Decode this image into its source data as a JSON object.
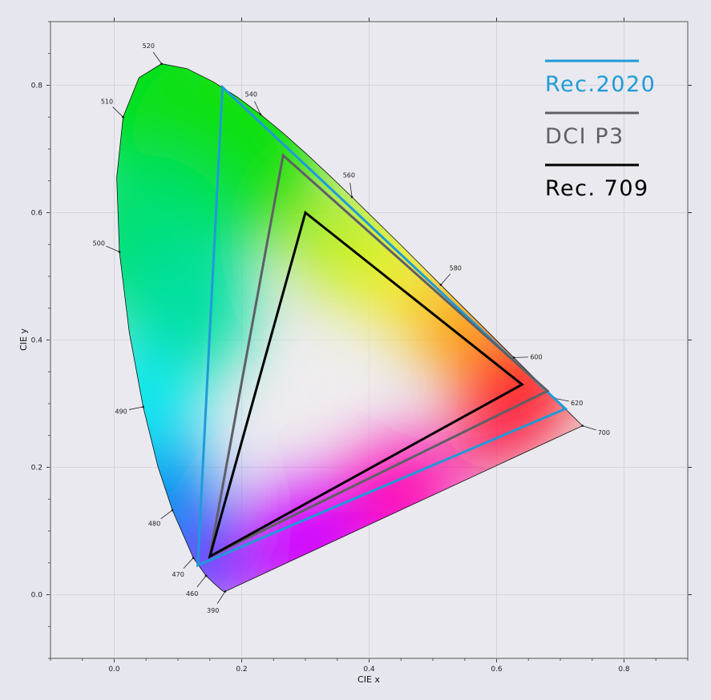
{
  "chart_data": {
    "type": "scatter",
    "title": "",
    "xlabel": "CIE x",
    "ylabel": "CIE y",
    "xlim": [
      -0.1,
      0.9
    ],
    "ylim": [
      -0.1,
      0.9
    ],
    "xticks": [
      0.0,
      0.2,
      0.4,
      0.6,
      0.8
    ],
    "yticks": [
      0.0,
      0.2,
      0.4,
      0.6,
      0.8
    ],
    "xtick_labels": [
      "0.0",
      "0.2",
      "0.4",
      "0.6",
      "0.8"
    ],
    "ytick_labels": [
      "0.0",
      "0.2",
      "0.4",
      "0.6",
      "0.8"
    ],
    "grid": true,
    "legend_position": "top-right",
    "spectral_locus": [
      [
        0.1741,
        0.005
      ],
      [
        0.1738,
        0.0049
      ],
      [
        0.1733,
        0.0048
      ],
      [
        0.1726,
        0.0048
      ],
      [
        0.1714,
        0.0051
      ],
      [
        0.1689,
        0.0069
      ],
      [
        0.1644,
        0.0109
      ],
      [
        0.1566,
        0.0177
      ],
      [
        0.144,
        0.0297
      ],
      [
        0.1241,
        0.0578
      ],
      [
        0.0913,
        0.1327
      ],
      [
        0.0687,
        0.2007
      ],
      [
        0.0454,
        0.295
      ],
      [
        0.0235,
        0.4127
      ],
      [
        0.0082,
        0.5384
      ],
      [
        0.0039,
        0.6548
      ],
      [
        0.0139,
        0.7502
      ],
      [
        0.0389,
        0.812
      ],
      [
        0.0743,
        0.8338
      ],
      [
        0.1142,
        0.8262
      ],
      [
        0.1547,
        0.8059
      ],
      [
        0.1929,
        0.7816
      ],
      [
        0.2296,
        0.7543
      ],
      [
        0.2658,
        0.7243
      ],
      [
        0.3016,
        0.6923
      ],
      [
        0.3373,
        0.6589
      ],
      [
        0.3731,
        0.6245
      ],
      [
        0.4087,
        0.5896
      ],
      [
        0.4441,
        0.5547
      ],
      [
        0.4788,
        0.5202
      ],
      [
        0.5125,
        0.4866
      ],
      [
        0.5448,
        0.4544
      ],
      [
        0.5752,
        0.4242
      ],
      [
        0.6029,
        0.3965
      ],
      [
        0.627,
        0.3725
      ],
      [
        0.6482,
        0.3514
      ],
      [
        0.6658,
        0.334
      ],
      [
        0.6801,
        0.3197
      ],
      [
        0.6915,
        0.3083
      ],
      [
        0.7006,
        0.2993
      ],
      [
        0.7079,
        0.292
      ],
      [
        0.714,
        0.2859
      ],
      [
        0.719,
        0.2809
      ],
      [
        0.723,
        0.277
      ],
      [
        0.726,
        0.274
      ],
      [
        0.7283,
        0.2717
      ],
      [
        0.73,
        0.27
      ],
      [
        0.7311,
        0.2689
      ],
      [
        0.732,
        0.268
      ],
      [
        0.7327,
        0.2673
      ],
      [
        0.7334,
        0.2666
      ],
      [
        0.734,
        0.266
      ],
      [
        0.7344,
        0.2656
      ],
      [
        0.7346,
        0.2654
      ],
      [
        0.7347,
        0.2653
      ]
    ],
    "wavelength_labels": [
      {
        "label": "390",
        "x": 0.1741,
        "y": 0.005
      },
      {
        "label": "460",
        "x": 0.144,
        "y": 0.0297
      },
      {
        "label": "470",
        "x": 0.1241,
        "y": 0.0578
      },
      {
        "label": "480",
        "x": 0.0913,
        "y": 0.1327
      },
      {
        "label": "490",
        "x": 0.0454,
        "y": 0.295
      },
      {
        "label": "500",
        "x": 0.0082,
        "y": 0.5384
      },
      {
        "label": "510",
        "x": 0.0139,
        "y": 0.7502
      },
      {
        "label": "520",
        "x": 0.0743,
        "y": 0.8338
      },
      {
        "label": "540",
        "x": 0.2296,
        "y": 0.7543
      },
      {
        "label": "560",
        "x": 0.3731,
        "y": 0.6245
      },
      {
        "label": "580",
        "x": 0.5125,
        "y": 0.4866
      },
      {
        "label": "600",
        "x": 0.627,
        "y": 0.3725
      },
      {
        "label": "620",
        "x": 0.6915,
        "y": 0.3083
      },
      {
        "label": "700",
        "x": 0.7347,
        "y": 0.2653
      }
    ],
    "series": [
      {
        "name": "Rec.2020",
        "color": "#1e9bd7",
        "points": [
          [
            0.708,
            0.292
          ],
          [
            0.17,
            0.797
          ],
          [
            0.131,
            0.046
          ]
        ]
      },
      {
        "name": "DCI P3",
        "color": "#5f5f66",
        "points": [
          [
            0.68,
            0.32
          ],
          [
            0.265,
            0.69
          ],
          [
            0.15,
            0.06
          ]
        ]
      },
      {
        "name": "Rec. 709",
        "color": "#000000",
        "points": [
          [
            0.64,
            0.33
          ],
          [
            0.3,
            0.6
          ],
          [
            0.15,
            0.06
          ]
        ]
      }
    ]
  }
}
